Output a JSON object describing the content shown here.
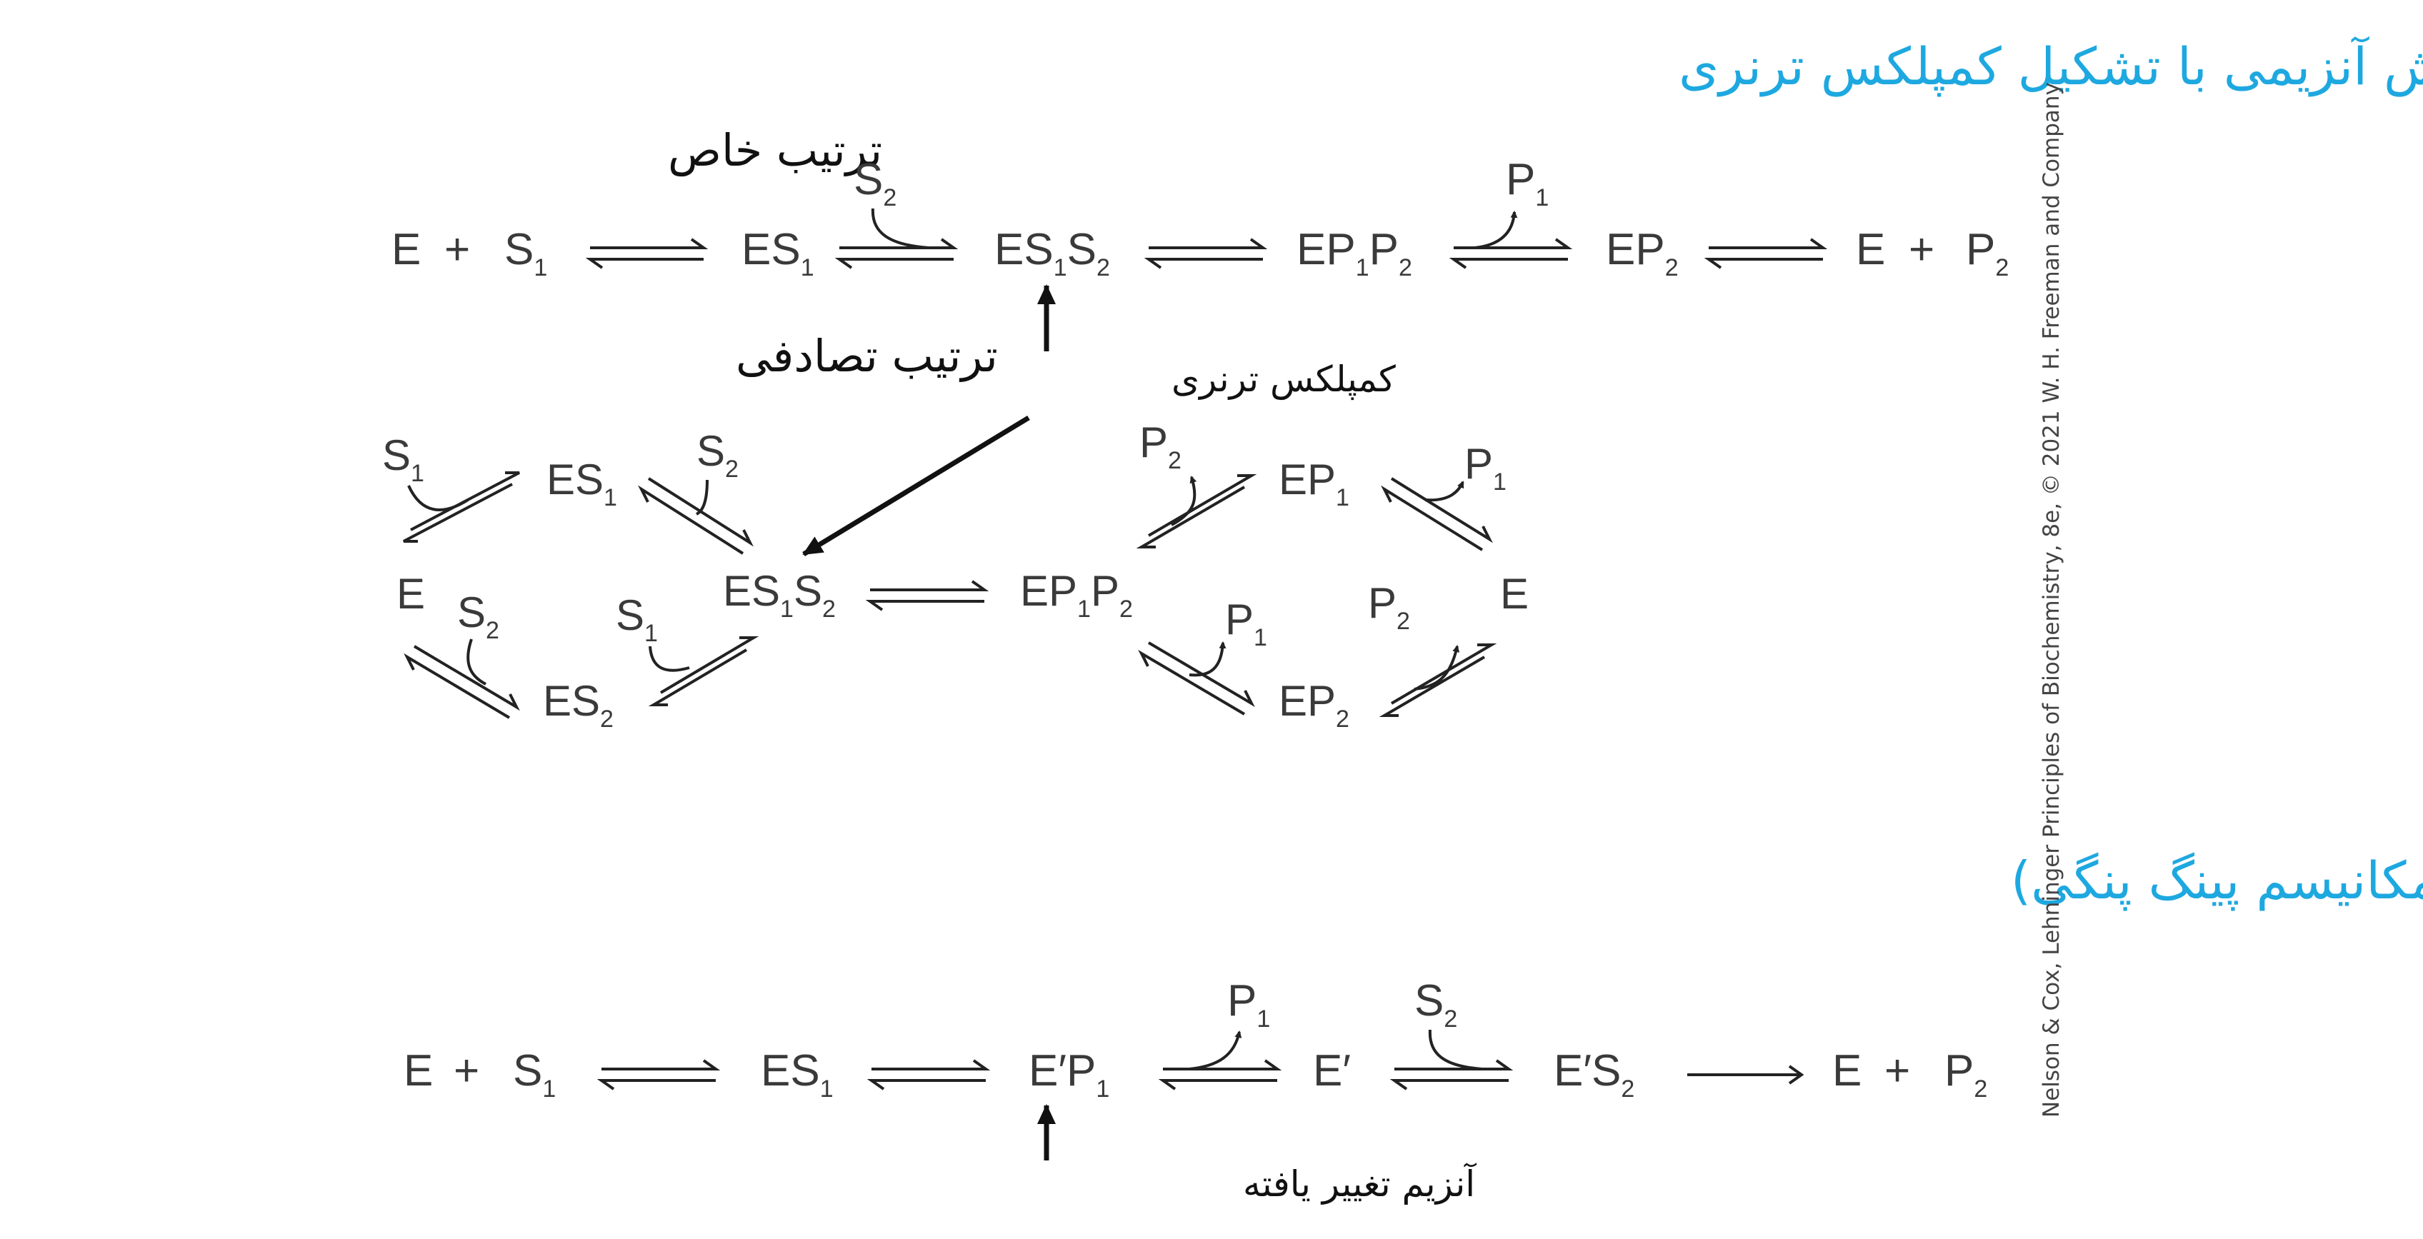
{
  "headings": {
    "ternary": "واکنش آنزیمی با تشکیل کمپلکس ترنری",
    "ordered": "ترتیب خاص",
    "random": "ترتیب تصادفی",
    "ping_pong": "واکنش آنزیمی بدون تشکیل کمپلکس ترنری (مکانیسم پینگ پنگی)"
  },
  "annotations": {
    "ternary_complex": "کمپلکس ترنری",
    "modified_enzyme": "آنزیم تغییر یافته"
  },
  "copyright": "Nelson & Cox, Lehninger Principles of Biochemistry, 8e, © 2021 W. H. Freeman and Company",
  "colors": {
    "heading": "#1ea8e0",
    "species": "#3a3a3a",
    "arrow": "#222222"
  },
  "ordered": {
    "e": "E",
    "plus1": "+",
    "s1": "S",
    "s1_sub": "1",
    "es1": "ES",
    "es1_sub": "1",
    "s2_in": "S",
    "s2_in_sub": "2",
    "es1s2_a": "ES",
    "es1s2_sub": "1",
    "es1s2_b": "S",
    "es1s2_sub2": "2",
    "ep1p2_a": "EP",
    "ep1p2_sub": "1",
    "ep1p2_b": "P",
    "ep1p2_sub2": "2",
    "p1_out": "P",
    "p1_out_sub": "1",
    "ep2": "EP",
    "ep2_sub": "2",
    "e_end": "E",
    "plus2": "+",
    "p2": "P",
    "p2_sub": "2"
  },
  "random": {
    "s1_in_top": "S",
    "s1_in_top_sub": "1",
    "es1": "ES",
    "es1_sub": "1",
    "s2_in_top": "S",
    "s2_in_top_sub": "2",
    "e": "E",
    "s2_in_bottom": "S",
    "s2_in_bottom_sub": "2",
    "s1_in_bottom": "S",
    "s1_in_bottom_sub": "1",
    "es2": "ES",
    "es2_sub": "2",
    "es1s2_a": "ES",
    "es1s2_sub": "1",
    "es1s2_b": "S",
    "es1s2_sub2": "2",
    "ep1p2_a": "EP",
    "ep1p2_sub": "1",
    "ep1p2_b": "P",
    "ep1p2_sub2": "2",
    "p2_out_top": "P",
    "p2_out_top_sub": "2",
    "ep1": "EP",
    "ep1_sub": "1",
    "p1_out_top": "P",
    "p1_out_top_sub": "1",
    "e_end": "E",
    "p1_out_bottom": "P",
    "p1_out_bottom_sub": "1",
    "ep2": "EP",
    "ep2_sub": "2",
    "p2_out_bottom": "P",
    "p2_out_bottom_sub": "2"
  },
  "pingpong": {
    "e": "E",
    "plus1": "+",
    "s1": "S",
    "s1_sub": "1",
    "es1": "ES",
    "es1_sub": "1",
    "ep1": "E′P",
    "ep1_sub": "1",
    "p1_out": "P",
    "p1_out_sub": "1",
    "eprime": "E′",
    "s2_in": "S",
    "s2_in_sub": "2",
    "es2": "E′S",
    "es2_sub": "2",
    "e_end": "E",
    "plus2": "+",
    "p2": "P",
    "p2_sub": "2"
  }
}
